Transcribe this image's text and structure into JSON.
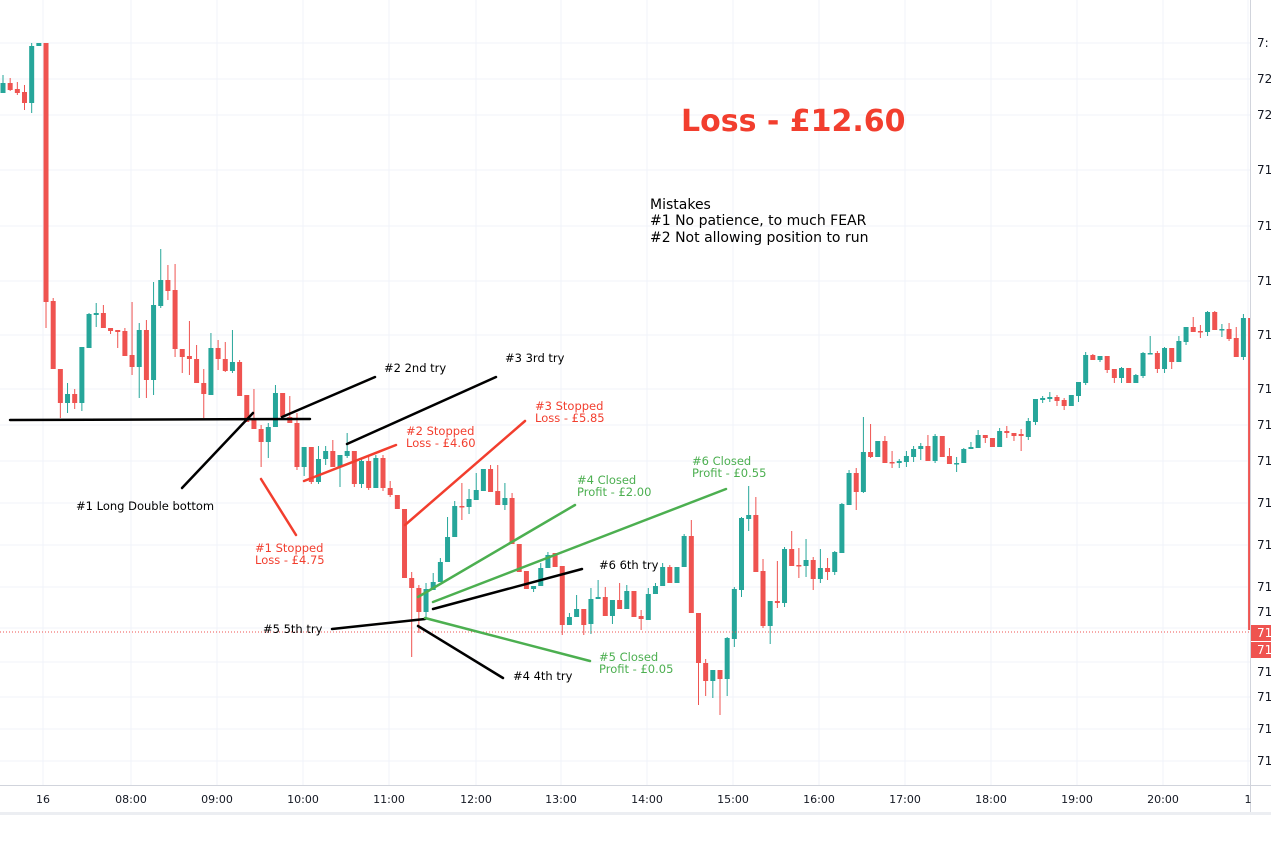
{
  "colors": {
    "up": "#26a69a",
    "down": "#ef5350",
    "annotation_red": "#f23e2e",
    "annotation_green": "#4caf50",
    "annotation_black": "#000000",
    "grid": "#f0f3fa"
  },
  "chart_data": {
    "type": "candlestick",
    "interval": "5m",
    "start_time": "06:30",
    "grid": true,
    "price_axis_labels": [
      "7:",
      "72",
      "72",
      "71",
      "71",
      "71",
      "71",
      "71",
      "71",
      "71",
      "71",
      "71",
      "71",
      "71",
      "71",
      "71",
      "71",
      "71"
    ],
    "current_price_labels": [
      "71",
      "71"
    ],
    "time_axis_labels": [
      "16",
      "08:00",
      "09:00",
      "10:00",
      "11:00",
      "12:00",
      "13:00",
      "14:00",
      "15:00",
      "16:00",
      "17:00",
      "18:00",
      "19:00",
      "20:00",
      "1"
    ],
    "candles": [
      [
        72.074,
        72.11,
        72.074,
        72.094
      ],
      [
        72.094,
        72.104,
        72.078,
        72.08
      ],
      [
        72.082,
        72.096,
        72.07,
        72.074
      ],
      [
        72.076,
        72.09,
        72.04,
        72.054
      ],
      [
        72.054,
        72.174,
        72.034,
        72.168
      ],
      [
        72.168,
        72.174,
        72.168,
        72.174
      ],
      [
        72.174,
        72.174,
        71.604,
        71.656
      ],
      [
        71.658,
        71.664,
        71.522,
        71.522
      ],
      [
        71.522,
        71.522,
        71.424,
        71.454
      ],
      [
        71.454,
        71.494,
        71.434,
        71.472
      ],
      [
        71.472,
        71.482,
        71.442,
        71.454
      ],
      [
        71.454,
        71.566,
        71.438,
        71.566
      ],
      [
        71.564,
        71.634,
        71.564,
        71.632
      ],
      [
        71.63,
        71.654,
        71.606,
        71.634
      ],
      [
        71.634,
        71.65,
        71.604,
        71.604
      ],
      [
        71.604,
        71.604,
        71.592,
        71.598
      ],
      [
        71.6,
        71.6,
        71.564,
        71.596
      ],
      [
        71.598,
        71.604,
        71.548,
        71.548
      ],
      [
        71.55,
        71.656,
        71.51,
        71.526
      ],
      [
        71.526,
        71.614,
        71.464,
        71.6
      ],
      [
        71.6,
        71.62,
        71.464,
        71.5
      ],
      [
        71.5,
        71.696,
        71.47,
        71.65
      ],
      [
        71.648,
        71.762,
        71.644,
        71.7
      ],
      [
        71.7,
        71.73,
        71.66,
        71.678
      ],
      [
        71.68,
        71.732,
        71.546,
        71.562
      ],
      [
        71.562,
        71.562,
        71.514,
        71.546
      ],
      [
        71.548,
        71.618,
        71.51,
        71.542
      ],
      [
        71.542,
        71.57,
        71.494,
        71.494
      ],
      [
        71.494,
        71.522,
        71.424,
        71.472
      ],
      [
        71.47,
        71.594,
        71.47,
        71.564
      ],
      [
        71.564,
        71.58,
        71.52,
        71.542
      ],
      [
        71.542,
        71.576,
        71.516,
        71.518
      ],
      [
        71.518,
        71.6,
        71.514,
        71.536
      ],
      [
        71.536,
        71.54,
        71.468,
        71.468
      ],
      [
        71.47,
        71.47,
        71.416,
        71.416
      ],
      [
        71.424,
        71.482,
        71.402,
        71.402
      ],
      [
        71.402,
        71.41,
        71.326,
        71.376
      ],
      [
        71.376,
        71.414,
        71.344,
        71.406
      ],
      [
        71.406,
        71.49,
        71.406,
        71.474
      ],
      [
        71.474,
        71.474,
        71.42,
        71.426
      ],
      [
        71.426,
        71.468,
        71.414,
        71.414
      ],
      [
        71.414,
        71.434,
        71.32,
        71.326
      ],
      [
        71.326,
        71.366,
        71.308,
        71.366
      ],
      [
        71.366,
        71.366,
        71.292,
        71.296
      ],
      [
        71.296,
        71.368,
        71.292,
        71.342
      ],
      [
        71.342,
        71.368,
        71.33,
        71.358
      ],
      [
        71.358,
        71.38,
        71.326,
        71.326
      ],
      [
        71.326,
        71.35,
        71.286,
        71.35
      ],
      [
        71.348,
        71.394,
        71.344,
        71.358
      ],
      [
        71.358,
        71.358,
        71.286,
        71.292
      ],
      [
        71.292,
        71.344,
        71.284,
        71.338
      ],
      [
        71.338,
        71.35,
        71.28,
        71.284
      ],
      [
        71.284,
        71.35,
        71.284,
        71.344
      ],
      [
        71.344,
        71.35,
        71.278,
        71.284
      ],
      [
        71.284,
        71.298,
        71.266,
        71.27
      ],
      [
        71.27,
        71.27,
        71.242,
        71.242
      ],
      [
        71.242,
        71.242,
        71.104,
        71.104
      ],
      [
        71.104,
        71.116,
        70.946,
        71.084
      ],
      [
        71.084,
        71.09,
        70.994,
        71.036
      ],
      [
        71.036,
        71.094,
        71.02,
        71.082
      ],
      [
        71.08,
        71.114,
        71.08,
        71.096
      ],
      [
        71.096,
        71.144,
        71.096,
        71.136
      ],
      [
        71.136,
        71.226,
        71.136,
        71.186
      ],
      [
        71.186,
        71.258,
        71.186,
        71.248
      ],
      [
        71.248,
        71.294,
        71.22,
        71.246
      ],
      [
        71.246,
        71.282,
        71.232,
        71.262
      ],
      [
        71.26,
        71.314,
        71.26,
        71.28
      ],
      [
        71.278,
        71.322,
        71.278,
        71.322
      ],
      [
        71.322,
        71.33,
        71.276,
        71.276
      ],
      [
        71.278,
        71.33,
        71.25,
        71.25
      ],
      [
        71.25,
        71.294,
        71.24,
        71.264
      ],
      [
        71.264,
        71.274,
        71.172,
        71.172
      ],
      [
        71.172,
        71.172,
        71.116,
        71.116
      ],
      [
        71.118,
        71.118,
        71.082,
        71.082
      ],
      [
        71.082,
        71.088,
        71.076,
        71.088
      ],
      [
        71.088,
        71.134,
        71.088,
        71.124
      ],
      [
        71.124,
        71.156,
        71.124,
        71.15
      ],
      [
        71.154,
        71.154,
        71.126,
        71.126
      ],
      [
        71.128,
        71.128,
        70.99,
        71.01
      ],
      [
        71.01,
        71.034,
        71.01,
        71.026
      ],
      [
        71.026,
        71.07,
        71.026,
        71.042
      ],
      [
        71.042,
        71.042,
        70.99,
        71.01
      ],
      [
        71.012,
        71.084,
        70.992,
        71.062
      ],
      [
        71.062,
        71.1,
        71.062,
        71.066
      ],
      [
        71.066,
        71.086,
        71.028,
        71.028
      ],
      [
        71.028,
        71.06,
        71.012,
        71.06
      ],
      [
        71.06,
        71.094,
        71.042,
        71.042
      ],
      [
        71.042,
        71.09,
        71.042,
        71.078
      ],
      [
        71.078,
        71.078,
        71.026,
        71.026
      ],
      [
        71.028,
        71.04,
        71.0,
        71.022
      ],
      [
        71.02,
        71.084,
        71.02,
        71.072
      ],
      [
        71.072,
        71.094,
        71.072,
        71.088
      ],
      [
        71.088,
        71.134,
        71.088,
        71.126
      ],
      [
        71.126,
        71.13,
        71.094,
        71.094
      ],
      [
        71.094,
        71.126,
        71.094,
        71.126
      ],
      [
        71.126,
        71.192,
        71.126,
        71.188
      ],
      [
        71.188,
        71.22,
        71.034,
        71.034
      ],
      [
        71.034,
        71.034,
        70.85,
        70.934
      ],
      [
        70.934,
        70.942,
        70.868,
        70.898
      ],
      [
        70.898,
        70.92,
        70.864,
        70.92
      ],
      [
        70.92,
        70.92,
        70.83,
        70.902
      ],
      [
        70.902,
        70.986,
        70.868,
        70.984
      ],
      [
        70.982,
        71.086,
        70.966,
        71.082
      ],
      [
        71.08,
        71.226,
        71.066,
        71.224
      ],
      [
        71.222,
        71.288,
        71.198,
        71.23
      ],
      [
        71.23,
        71.266,
        71.116,
        71.116
      ],
      [
        71.118,
        71.142,
        71.004,
        71.008
      ],
      [
        71.008,
        71.058,
        70.972,
        71.058
      ],
      [
        71.058,
        71.138,
        71.044,
        71.054
      ],
      [
        71.054,
        71.166,
        71.046,
        71.162
      ],
      [
        71.162,
        71.198,
        71.128,
        71.128
      ],
      [
        71.13,
        71.164,
        71.104,
        71.128
      ],
      [
        71.128,
        71.182,
        71.106,
        71.14
      ],
      [
        71.14,
        71.146,
        71.08,
        71.102
      ],
      [
        71.102,
        71.162,
        71.094,
        71.124
      ],
      [
        71.124,
        71.144,
        71.1,
        71.116
      ],
      [
        71.116,
        71.158,
        71.11,
        71.156
      ],
      [
        71.154,
        71.254,
        71.154,
        71.252
      ],
      [
        71.25,
        71.32,
        71.25,
        71.314
      ],
      [
        71.314,
        71.324,
        71.24,
        71.276
      ],
      [
        71.276,
        71.426,
        71.274,
        71.356
      ],
      [
        71.356,
        71.412,
        71.344,
        71.346
      ],
      [
        71.346,
        71.378,
        71.346,
        71.378
      ],
      [
        71.378,
        71.388,
        71.334,
        71.334
      ],
      [
        71.336,
        71.358,
        71.324,
        71.334
      ],
      [
        71.334,
        71.342,
        71.324,
        71.338
      ],
      [
        71.336,
        71.358,
        71.326,
        71.348
      ],
      [
        71.346,
        71.368,
        71.336,
        71.362
      ],
      [
        71.362,
        71.374,
        71.34,
        71.368
      ],
      [
        71.368,
        71.39,
        71.338,
        71.338
      ],
      [
        71.338,
        71.392,
        71.334,
        71.388
      ],
      [
        71.388,
        71.388,
        71.346,
        71.346
      ],
      [
        71.348,
        71.364,
        71.332,
        71.332
      ],
      [
        71.332,
        71.346,
        71.316,
        71.334
      ],
      [
        71.334,
        71.364,
        71.334,
        71.362
      ],
      [
        71.362,
        71.376,
        71.362,
        71.366
      ],
      [
        71.364,
        71.4,
        71.364,
        71.39
      ],
      [
        71.39,
        71.39,
        71.374,
        71.384
      ],
      [
        71.384,
        71.384,
        71.366,
        71.366
      ],
      [
        71.366,
        71.404,
        71.366,
        71.398
      ],
      [
        71.398,
        71.408,
        71.384,
        71.394
      ],
      [
        71.394,
        71.394,
        71.378,
        71.388
      ],
      [
        71.392,
        71.402,
        71.358,
        71.388
      ],
      [
        71.386,
        71.424,
        71.38,
        71.418
      ],
      [
        71.416,
        71.462,
        71.41,
        71.462
      ],
      [
        71.46,
        71.468,
        71.454,
        71.464
      ],
      [
        71.462,
        71.476,
        71.456,
        71.466
      ],
      [
        71.466,
        71.47,
        71.448,
        71.458
      ],
      [
        71.46,
        71.464,
        71.44,
        71.448
      ],
      [
        71.448,
        71.47,
        71.448,
        71.47
      ],
      [
        71.468,
        71.496,
        71.456,
        71.496
      ],
      [
        71.494,
        71.556,
        71.49,
        71.55
      ],
      [
        71.55,
        71.552,
        71.54,
        71.54
      ],
      [
        71.54,
        71.548,
        71.536,
        71.548
      ],
      [
        71.548,
        71.548,
        71.514,
        71.52
      ],
      [
        71.522,
        71.522,
        71.494,
        71.504
      ],
      [
        71.504,
        71.526,
        71.494,
        71.524
      ],
      [
        71.524,
        71.524,
        71.494,
        71.494
      ],
      [
        71.494,
        71.512,
        71.494,
        71.51
      ],
      [
        71.508,
        71.556,
        71.504,
        71.554
      ],
      [
        71.552,
        71.588,
        71.552,
        71.554
      ],
      [
        71.554,
        71.558,
        71.514,
        71.522
      ],
      [
        71.522,
        71.566,
        71.514,
        71.564
      ],
      [
        71.564,
        71.564,
        71.522,
        71.536
      ],
      [
        71.536,
        71.588,
        71.536,
        71.578
      ],
      [
        71.576,
        71.606,
        71.57,
        71.606
      ],
      [
        71.606,
        71.626,
        71.596,
        71.596
      ],
      [
        71.598,
        71.61,
        71.584,
        71.596
      ],
      [
        71.596,
        71.638,
        71.588,
        71.636
      ],
      [
        71.636,
        71.638,
        71.6,
        71.6
      ],
      [
        71.6,
        71.612,
        71.586,
        71.602
      ],
      [
        71.602,
        71.614,
        71.578,
        71.582
      ],
      [
        71.584,
        71.606,
        71.546,
        71.546
      ],
      [
        71.546,
        71.632,
        71.54,
        71.624
      ],
      [
        71.624,
        71.624,
        70.94,
        71.0
      ]
    ]
  },
  "annotations": {
    "total": "Loss - £12.60",
    "mistakes_title": "Mistakes",
    "mistake_1": "#1  No patience, to much FEAR",
    "mistake_2": "#2  Not allowing position to run",
    "try_1": "#1 Long Double bottom",
    "try_2": "#2 2nd try",
    "try_3": "#3 3rd try",
    "try_4": "#4 4th try",
    "try_5": "#5 5th try",
    "try_6": "#6 6th try",
    "result_1": [
      "#1 Stopped",
      "Loss - £4.75"
    ],
    "result_2": [
      "#2 Stopped",
      "Loss - £4.60"
    ],
    "result_3": [
      "#3 Stopped",
      "Loss - £5.85"
    ],
    "result_4": [
      "#4 Closed",
      "Profit - £2.00"
    ],
    "result_5": [
      "#5 Closed",
      "Profit - £0.05"
    ],
    "result_6": [
      "#6 Closed",
      "Profit - £0.55"
    ]
  }
}
